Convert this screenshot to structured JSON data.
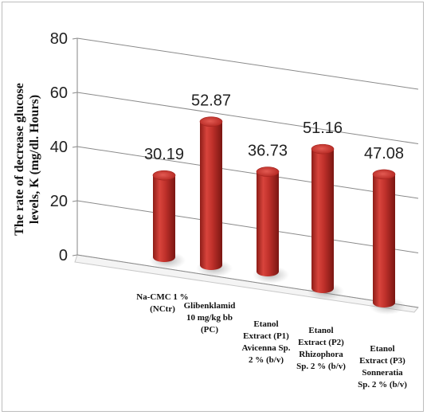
{
  "chart_data": {
    "type": "bar",
    "style": "3d-cylinder",
    "ylabel_lines": [
      "The rate of decrease glucose",
      "levels, K (mg/dl. Hours)"
    ],
    "xlabel": "",
    "title": "",
    "ylim": [
      0,
      80
    ],
    "yticks": [
      0,
      20,
      40,
      60,
      80
    ],
    "grid": true,
    "legend": "none",
    "bar_color": "#c0312b",
    "categories": [
      [
        "Na-CMC 1 %",
        "(NCtr)"
      ],
      [
        "Glibenklamid",
        "10 mg/kg bb",
        "(PC)"
      ],
      [
        "Etanol",
        "Extract (P1)",
        "Avicenna Sp.",
        "2 % (b/v)"
      ],
      [
        "Etanol",
        "Extract (P2)",
        "Rhizophora",
        "Sp. 2 % (b/v)"
      ],
      [
        "Etanol",
        "Extract (P3)",
        "Sonneratia",
        "Sp. 2 % (b/v)"
      ]
    ],
    "values": [
      30.19,
      52.87,
      36.73,
      51.16,
      47.08
    ],
    "value_labels": [
      "30.19",
      "52.87",
      "36.73",
      "51.16",
      "47.08"
    ]
  }
}
